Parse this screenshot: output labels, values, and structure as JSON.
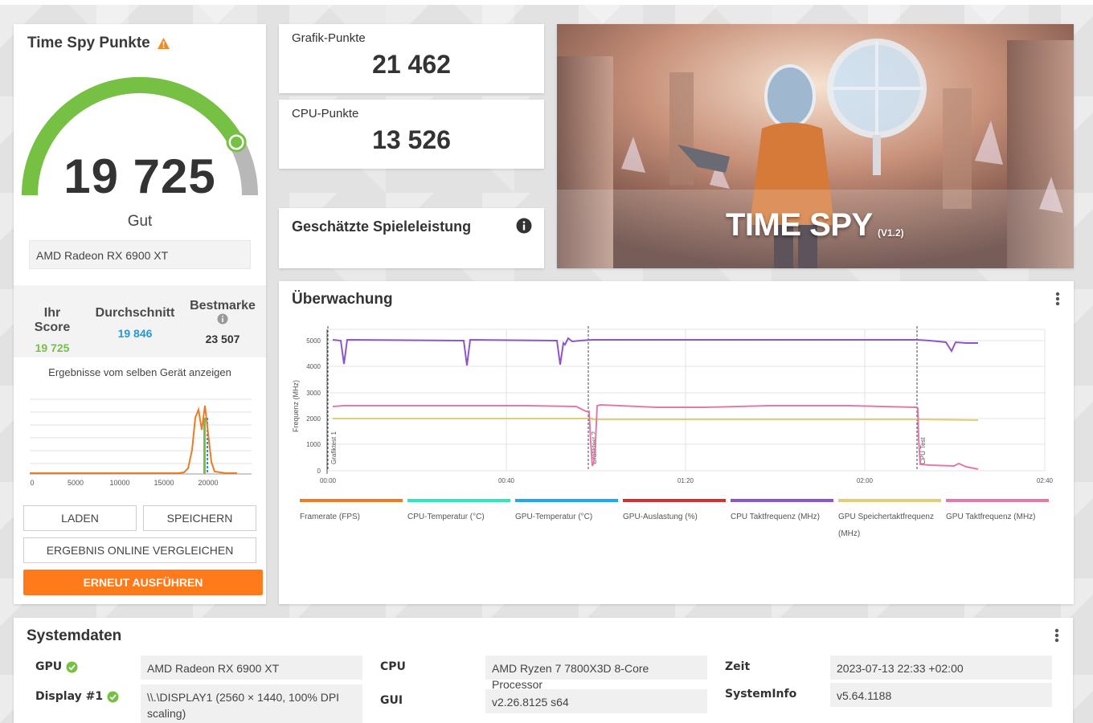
{
  "score_card": {
    "title": "Time Spy Punkte",
    "score": "19 725",
    "gauge_fraction": 0.84,
    "rating": "Gut",
    "gpu": "AMD Radeon RX 6900 XT",
    "compare": {
      "your_label": "Ihr Score",
      "your_value": "19 725",
      "avg_label": "Durchschnitt",
      "avg_value": "19 846",
      "best_label": "Bestmarke",
      "best_value": "23 507"
    },
    "same_device_link": "Ergebnisse vom selben Gerät anzeigen",
    "histogram_ticks": [
      "0",
      "5000",
      "10000",
      "15000",
      "20000"
    ],
    "buttons": {
      "load": "LADEN",
      "save": "SPEICHERN",
      "compare_online": "ERGEBNIS ONLINE VERGLEICHEN",
      "run_again": "ERNEUT AUSFÜHREN"
    }
  },
  "graphics_score": {
    "label": "Grafik-Punkte",
    "value": "21 462"
  },
  "cpu_score": {
    "label": "CPU-Punkte",
    "value": "13 526"
  },
  "estimated": {
    "title": "Geschätzte Spieleleistung"
  },
  "banner": {
    "title": "TIME SPY",
    "version": "(V1.2)"
  },
  "monitoring": {
    "title": "Überwachung",
    "y_label": "Frequenz (MHz)",
    "y_ticks": [
      "0",
      "1000",
      "2000",
      "3000",
      "4000",
      "5000"
    ],
    "x_ticks": [
      "00:00",
      "00:40",
      "01:20",
      "02:00",
      "02:40"
    ],
    "markers": [
      "Grafiktest 1",
      "Grafiktest 2",
      "CPU Test"
    ],
    "legend": [
      {
        "label": "Framerate (FPS)",
        "color": "#f07a22"
      },
      {
        "label": "CPU-Temperatur (°C)",
        "color": "#2ee6c0"
      },
      {
        "label": "GPU-Temperatur (°C)",
        "color": "#22aae6"
      },
      {
        "label": "GPU-Auslastung (%)",
        "color": "#cc3333"
      },
      {
        "label": "CPU Taktfrequenz (MHz)",
        "color": "#8e55c8"
      },
      {
        "label": "GPU Speichertaktfrequenz (MHz)",
        "color": "#e0cc7a"
      },
      {
        "label": "GPU Taktfrequenz (MHz)",
        "color": "#e27aa8"
      }
    ]
  },
  "system": {
    "title": "Systemdaten",
    "gpu_label": "GPU",
    "gpu_value": "AMD Radeon RX 6900 XT",
    "display_label": "Display #1",
    "display_value": "\\\\.\\DISPLAY1 (2560 × 1440, 100% DPI scaling)",
    "cpu_label": "CPU",
    "cpu_value": "AMD Ryzen 7 7800X3D 8-Core Processor",
    "gui_label": "GUI",
    "gui_value": "v2.26.8125 s64",
    "time_label": "Zeit",
    "time_value": "2023-07-13 22:33 +02:00",
    "sysinfo_label": "SystemInfo",
    "sysinfo_value": "v5.64.1188"
  },
  "colors": {
    "accent_green": "#76c043",
    "accent_orange": "#ff7a1a",
    "avg_blue": "#1e9bd7"
  }
}
